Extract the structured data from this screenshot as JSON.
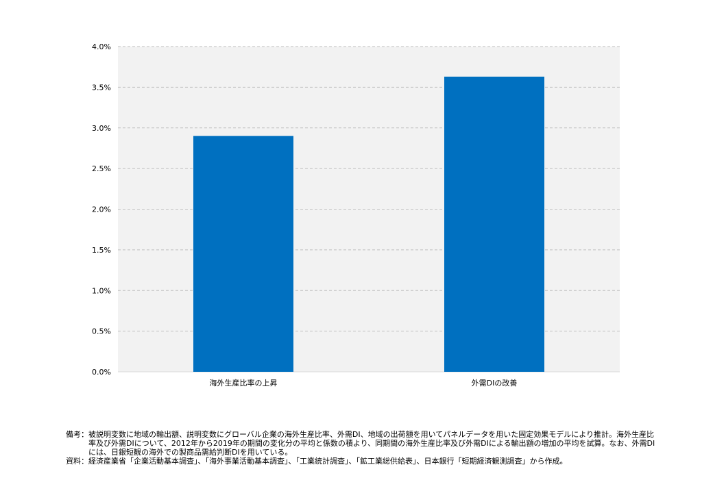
{
  "chart_data": {
    "type": "bar",
    "categories": [
      "海外生産比率の上昇",
      "外需DIの改善"
    ],
    "values": [
      2.9,
      3.63
    ],
    "ylim": [
      0,
      4.0
    ],
    "yticks": [
      0.0,
      0.5,
      1.0,
      1.5,
      2.0,
      2.5,
      3.0,
      3.5,
      4.0
    ],
    "ytick_labels": [
      "0.0%",
      "0.5%",
      "1.0%",
      "1.5%",
      "2.0%",
      "2.5%",
      "3.0%",
      "3.5%",
      "4.0%"
    ],
    "grid": true,
    "bar_color": "#0070C0",
    "plot_background": "#F2F2F2",
    "gridline_color": "#BFBFBF"
  },
  "notes": {
    "remarks_label": "備考：",
    "remarks_text": "被説明変数に地域の輸出額、説明変数にグローバル企業の海外生産比率、外需DI、地域の出荷額を用いてパネルデータを用いた固定効果モデルにより推計。海外生産比率及び外需DIについて、2012年から2019年の期間の変化分の平均と係数の積より、同期間の海外生産比率及び外需DIによる輸出額の増加の平均を試算。なお、外需DIには、日銀短観の海外での製商品需給判断DIを用いている。",
    "source_label": "資料：",
    "source_text": "経済産業省「企業活動基本調査」、「海外事業活動基本調査」、「工業統計調査」、「鉱工業総供給表」、日本銀行「短期経済観測調査」から作成。"
  }
}
